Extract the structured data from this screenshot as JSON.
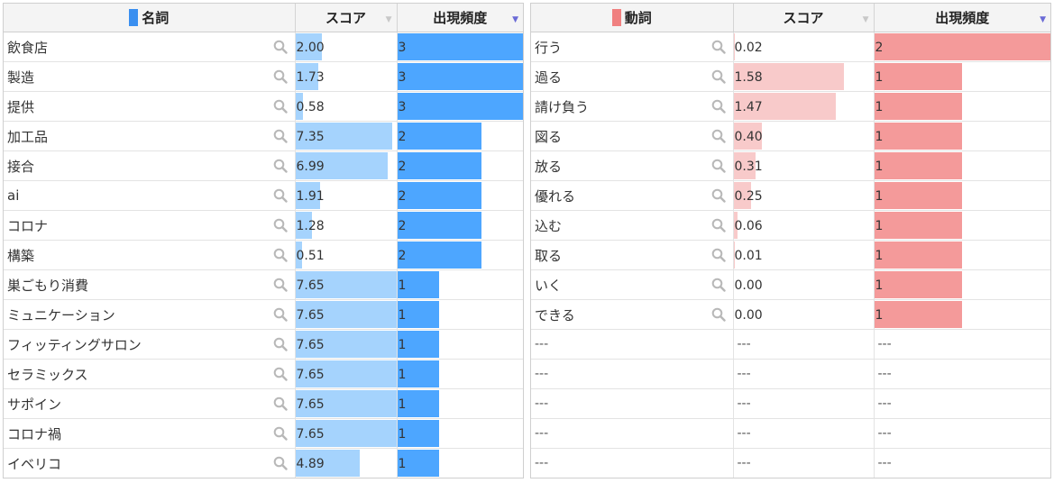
{
  "colors": {
    "noun_legend": "#3a8ff0",
    "verb_legend": "#f08080",
    "noun_score_bar": "#a5d3fd",
    "noun_freq_bar": "#4da6ff",
    "verb_score_bar": "#f8caca",
    "verb_freq_bar": "#f49a9a"
  },
  "noun_table": {
    "header_word": "名詞",
    "header_score": "スコア",
    "header_freq": "出現頻度",
    "max_score": 7.65,
    "max_freq": 3,
    "rows": [
      {
        "word": "飲食店",
        "score": "2.00",
        "freq": "3"
      },
      {
        "word": "製造",
        "score": "1.73",
        "freq": "3"
      },
      {
        "word": "提供",
        "score": "0.58",
        "freq": "3"
      },
      {
        "word": "加工品",
        "score": "7.35",
        "freq": "2"
      },
      {
        "word": "接合",
        "score": "6.99",
        "freq": "2"
      },
      {
        "word": "ai",
        "score": "1.91",
        "freq": "2"
      },
      {
        "word": "コロナ",
        "score": "1.28",
        "freq": "2"
      },
      {
        "word": "構築",
        "score": "0.51",
        "freq": "2"
      },
      {
        "word": "巣ごもり消費",
        "score": "7.65",
        "freq": "1"
      },
      {
        "word": "ミュニケーション",
        "score": "7.65",
        "freq": "1"
      },
      {
        "word": "フィッティングサロン",
        "score": "7.65",
        "freq": "1"
      },
      {
        "word": "セラミックス",
        "score": "7.65",
        "freq": "1"
      },
      {
        "word": "サポイン",
        "score": "7.65",
        "freq": "1"
      },
      {
        "word": "コロナ禍",
        "score": "7.65",
        "freq": "1"
      },
      {
        "word": "イベリコ",
        "score": "4.89",
        "freq": "1"
      }
    ]
  },
  "verb_table": {
    "header_word": "動詞",
    "header_score": "スコア",
    "header_freq": "出現頻度",
    "max_score": 2.0,
    "max_freq": 2,
    "rows": [
      {
        "word": "行う",
        "score": "0.02",
        "freq": "2"
      },
      {
        "word": "過る",
        "score": "1.58",
        "freq": "1"
      },
      {
        "word": "請け負う",
        "score": "1.47",
        "freq": "1"
      },
      {
        "word": "図る",
        "score": "0.40",
        "freq": "1"
      },
      {
        "word": "放る",
        "score": "0.31",
        "freq": "1"
      },
      {
        "word": "優れる",
        "score": "0.25",
        "freq": "1"
      },
      {
        "word": "込む",
        "score": "0.06",
        "freq": "1"
      },
      {
        "word": "取る",
        "score": "0.01",
        "freq": "1"
      },
      {
        "word": "いく",
        "score": "0.00",
        "freq": "1"
      },
      {
        "word": "できる",
        "score": "0.00",
        "freq": "1"
      }
    ],
    "empty_rows": 5,
    "empty_text": "---"
  }
}
